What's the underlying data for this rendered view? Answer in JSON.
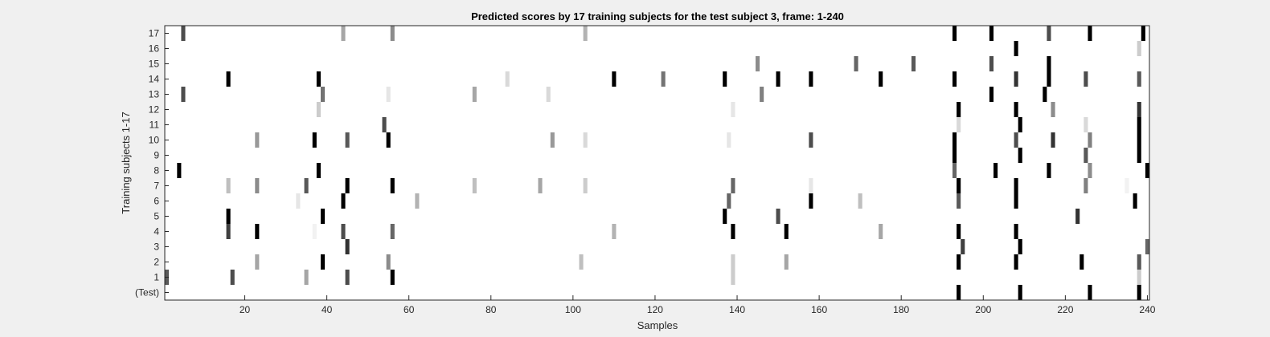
{
  "chart_data": {
    "type": "heatmap",
    "title": "Predicted scores by 17 training subjects for the test subject 3, frame: 1-240",
    "xlabel": "Samples",
    "ylabel": "Training subjects 1-17",
    "xlim": [
      1,
      240
    ],
    "x_ticks": [
      20,
      40,
      60,
      80,
      100,
      120,
      140,
      160,
      180,
      200,
      220,
      240
    ],
    "rows": [
      "17",
      "16",
      "15",
      "14",
      "13",
      "12",
      "11",
      "10",
      "9",
      "8",
      "7",
      "6",
      "5",
      "4",
      "3",
      "2",
      "1",
      "(Test)"
    ],
    "colormap": "gray-reversed",
    "note_value_scale": "0 = white, 1 = black",
    "marks": [
      {
        "row": "17",
        "x": 5,
        "v": 0.7
      },
      {
        "row": "17",
        "x": 44,
        "v": 0.35
      },
      {
        "row": "17",
        "x": 56,
        "v": 0.45
      },
      {
        "row": "17",
        "x": 103,
        "v": 0.3
      },
      {
        "row": "17",
        "x": 193,
        "v": 1
      },
      {
        "row": "17",
        "x": 202,
        "v": 1
      },
      {
        "row": "17",
        "x": 216,
        "v": 0.7
      },
      {
        "row": "17",
        "x": 226,
        "v": 1
      },
      {
        "row": "17",
        "x": 239,
        "v": 1
      },
      {
        "row": "16",
        "x": 208,
        "v": 1
      },
      {
        "row": "16",
        "x": 238,
        "v": 0.2
      },
      {
        "row": "15",
        "x": 145,
        "v": 0.45
      },
      {
        "row": "15",
        "x": 169,
        "v": 0.6
      },
      {
        "row": "15",
        "x": 183,
        "v": 0.65
      },
      {
        "row": "15",
        "x": 202,
        "v": 0.7
      },
      {
        "row": "15",
        "x": 216,
        "v": 1
      },
      {
        "row": "14",
        "x": 16,
        "v": 1
      },
      {
        "row": "14",
        "x": 38,
        "v": 1
      },
      {
        "row": "14",
        "x": 84,
        "v": 0.15
      },
      {
        "row": "14",
        "x": 110,
        "v": 1
      },
      {
        "row": "14",
        "x": 122,
        "v": 0.55
      },
      {
        "row": "14",
        "x": 137,
        "v": 1
      },
      {
        "row": "14",
        "x": 150,
        "v": 1
      },
      {
        "row": "14",
        "x": 158,
        "v": 1
      },
      {
        "row": "14",
        "x": 175,
        "v": 1
      },
      {
        "row": "14",
        "x": 193,
        "v": 1
      },
      {
        "row": "14",
        "x": 208,
        "v": 0.8
      },
      {
        "row": "14",
        "x": 216,
        "v": 1
      },
      {
        "row": "14",
        "x": 225,
        "v": 0.7
      },
      {
        "row": "14",
        "x": 238,
        "v": 0.65
      },
      {
        "row": "13",
        "x": 5,
        "v": 0.7
      },
      {
        "row": "13",
        "x": 39,
        "v": 0.55
      },
      {
        "row": "13",
        "x": 55,
        "v": 0.1
      },
      {
        "row": "13",
        "x": 76,
        "v": 0.35
      },
      {
        "row": "13",
        "x": 94,
        "v": 0.15
      },
      {
        "row": "13",
        "x": 146,
        "v": 0.5
      },
      {
        "row": "13",
        "x": 202,
        "v": 1
      },
      {
        "row": "13",
        "x": 215,
        "v": 1
      },
      {
        "row": "12",
        "x": 38,
        "v": 0.2
      },
      {
        "row": "12",
        "x": 139,
        "v": 0.1
      },
      {
        "row": "12",
        "x": 194,
        "v": 1
      },
      {
        "row": "12",
        "x": 208,
        "v": 1
      },
      {
        "row": "12",
        "x": 217,
        "v": 0.45
      },
      {
        "row": "12",
        "x": 238,
        "v": 0.8
      },
      {
        "row": "11",
        "x": 54,
        "v": 0.7
      },
      {
        "row": "11",
        "x": 194,
        "v": 0.15
      },
      {
        "row": "11",
        "x": 209,
        "v": 1
      },
      {
        "row": "11",
        "x": 225,
        "v": 0.15
      },
      {
        "row": "11",
        "x": 238,
        "v": 1
      },
      {
        "row": "10",
        "x": 23,
        "v": 0.4
      },
      {
        "row": "10",
        "x": 37,
        "v": 1
      },
      {
        "row": "10",
        "x": 45,
        "v": 0.65
      },
      {
        "row": "10",
        "x": 55,
        "v": 1
      },
      {
        "row": "10",
        "x": 95,
        "v": 0.4
      },
      {
        "row": "10",
        "x": 103,
        "v": 0.15
      },
      {
        "row": "10",
        "x": 138,
        "v": 0.1
      },
      {
        "row": "10",
        "x": 158,
        "v": 0.7
      },
      {
        "row": "10",
        "x": 193,
        "v": 1
      },
      {
        "row": "10",
        "x": 208,
        "v": 0.7
      },
      {
        "row": "10",
        "x": 217,
        "v": 0.8
      },
      {
        "row": "10",
        "x": 226,
        "v": 0.5
      },
      {
        "row": "10",
        "x": 238,
        "v": 1
      },
      {
        "row": "9",
        "x": 193,
        "v": 1
      },
      {
        "row": "9",
        "x": 209,
        "v": 1
      },
      {
        "row": "9",
        "x": 225,
        "v": 0.65
      },
      {
        "row": "9",
        "x": 238,
        "v": 1
      },
      {
        "row": "8",
        "x": 4,
        "v": 1
      },
      {
        "row": "8",
        "x": 38,
        "v": 1
      },
      {
        "row": "8",
        "x": 193,
        "v": 0.6
      },
      {
        "row": "8",
        "x": 203,
        "v": 1
      },
      {
        "row": "8",
        "x": 216,
        "v": 1
      },
      {
        "row": "8",
        "x": 226,
        "v": 0.45
      },
      {
        "row": "8",
        "x": 240,
        "v": 1
      },
      {
        "row": "7",
        "x": 16,
        "v": 0.25
      },
      {
        "row": "7",
        "x": 23,
        "v": 0.45
      },
      {
        "row": "7",
        "x": 35,
        "v": 0.65
      },
      {
        "row": "7",
        "x": 45,
        "v": 1
      },
      {
        "row": "7",
        "x": 56,
        "v": 1
      },
      {
        "row": "7",
        "x": 76,
        "v": 0.25
      },
      {
        "row": "7",
        "x": 92,
        "v": 0.35
      },
      {
        "row": "7",
        "x": 103,
        "v": 0.2
      },
      {
        "row": "7",
        "x": 139,
        "v": 0.6
      },
      {
        "row": "7",
        "x": 158,
        "v": 0.1
      },
      {
        "row": "7",
        "x": 194,
        "v": 1
      },
      {
        "row": "7",
        "x": 208,
        "v": 1
      },
      {
        "row": "7",
        "x": 225,
        "v": 0.5
      },
      {
        "row": "7",
        "x": 235,
        "v": 0.05
      },
      {
        "row": "6",
        "x": 33,
        "v": 0.1
      },
      {
        "row": "6",
        "x": 44,
        "v": 1
      },
      {
        "row": "6",
        "x": 62,
        "v": 0.3
      },
      {
        "row": "6",
        "x": 138,
        "v": 0.6
      },
      {
        "row": "6",
        "x": 158,
        "v": 1
      },
      {
        "row": "6",
        "x": 170,
        "v": 0.25
      },
      {
        "row": "6",
        "x": 194,
        "v": 0.65
      },
      {
        "row": "6",
        "x": 208,
        "v": 1
      },
      {
        "row": "6",
        "x": 237,
        "v": 1
      },
      {
        "row": "5",
        "x": 16,
        "v": 1
      },
      {
        "row": "5",
        "x": 39,
        "v": 1
      },
      {
        "row": "5",
        "x": 137,
        "v": 1
      },
      {
        "row": "5",
        "x": 150,
        "v": 0.7
      },
      {
        "row": "5",
        "x": 223,
        "v": 0.8
      },
      {
        "row": "4",
        "x": 16,
        "v": 0.75
      },
      {
        "row": "4",
        "x": 23,
        "v": 1
      },
      {
        "row": "4",
        "x": 37,
        "v": 0.05
      },
      {
        "row": "4",
        "x": 44,
        "v": 0.7
      },
      {
        "row": "4",
        "x": 56,
        "v": 0.6
      },
      {
        "row": "4",
        "x": 110,
        "v": 0.3
      },
      {
        "row": "4",
        "x": 139,
        "v": 1
      },
      {
        "row": "4",
        "x": 152,
        "v": 1
      },
      {
        "row": "4",
        "x": 175,
        "v": 0.35
      },
      {
        "row": "4",
        "x": 194,
        "v": 1
      },
      {
        "row": "4",
        "x": 208,
        "v": 1
      },
      {
        "row": "3",
        "x": 45,
        "v": 0.8
      },
      {
        "row": "3",
        "x": 195,
        "v": 0.75
      },
      {
        "row": "3",
        "x": 209,
        "v": 1
      },
      {
        "row": "3",
        "x": 240,
        "v": 0.6
      },
      {
        "row": "2",
        "x": 23,
        "v": 0.35
      },
      {
        "row": "2",
        "x": 39,
        "v": 1
      },
      {
        "row": "2",
        "x": 55,
        "v": 0.45
      },
      {
        "row": "2",
        "x": 102,
        "v": 0.25
      },
      {
        "row": "2",
        "x": 139,
        "v": 0.2
      },
      {
        "row": "2",
        "x": 152,
        "v": 0.35
      },
      {
        "row": "2",
        "x": 194,
        "v": 1
      },
      {
        "row": "2",
        "x": 208,
        "v": 1
      },
      {
        "row": "2",
        "x": 224,
        "v": 1
      },
      {
        "row": "2",
        "x": 238,
        "v": 0.65
      },
      {
        "row": "1",
        "x": 1,
        "v": 0.65
      },
      {
        "row": "1",
        "x": 17,
        "v": 0.7
      },
      {
        "row": "1",
        "x": 35,
        "v": 0.35
      },
      {
        "row": "1",
        "x": 45,
        "v": 0.7
      },
      {
        "row": "1",
        "x": 56,
        "v": 1
      },
      {
        "row": "1",
        "x": 139,
        "v": 0.2
      },
      {
        "row": "1",
        "x": 238,
        "v": 0.2
      },
      {
        "row": "(Test)",
        "x": 194,
        "v": 1
      },
      {
        "row": "(Test)",
        "x": 209,
        "v": 1
      },
      {
        "row": "(Test)",
        "x": 226,
        "v": 1
      },
      {
        "row": "(Test)",
        "x": 238,
        "v": 1
      }
    ]
  }
}
